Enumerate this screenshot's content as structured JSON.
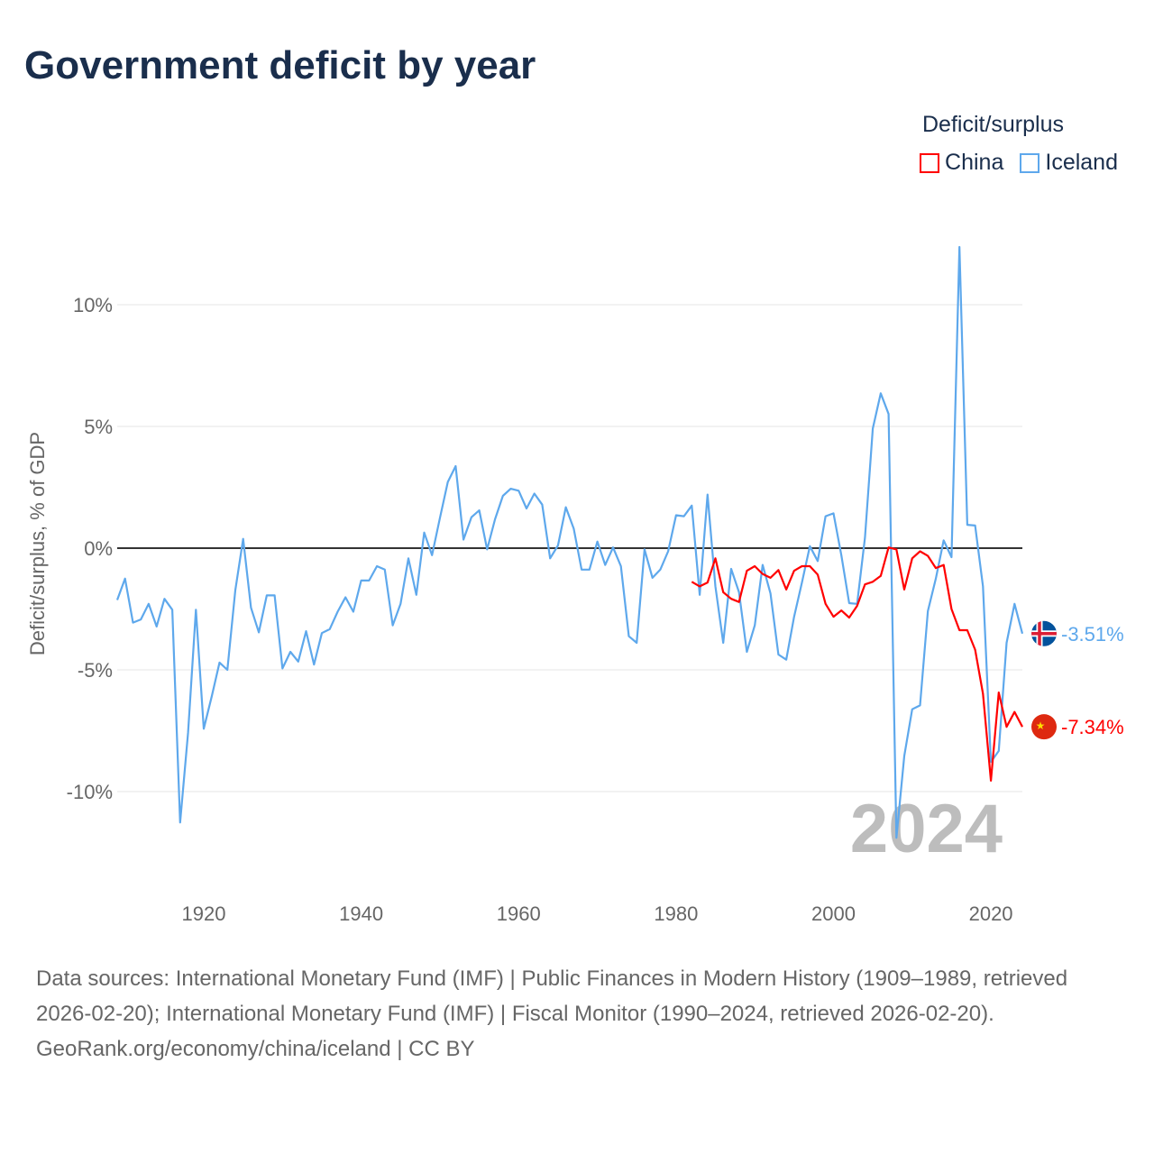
{
  "title": "Government deficit by year",
  "legend": {
    "title": "Deficit/surplus",
    "items": [
      {
        "label": "China",
        "color": "#ff0000"
      },
      {
        "label": "Iceland",
        "color": "#5ea8ec"
      }
    ]
  },
  "year_watermark": "2024",
  "footer": {
    "sources": "Data sources: International Monetary Fund (IMF) | Public Finances in Modern History (1909–1989, retrieved 2026-02-20); International Monetary Fund (IMF) | Fiscal Monitor (1990–2024, retrieved 2026-02-20).",
    "credit": "GeoRank.org/economy/china/iceland | CC BY"
  },
  "chart_data": {
    "type": "line",
    "title": "Government deficit by year",
    "xlabel": "",
    "ylabel": "Deficit/surplus, % of GDP",
    "xlim": [
      1909,
      2024
    ],
    "ylim": [
      -12.5,
      12.5
    ],
    "x_ticks": [
      "1920",
      "1940",
      "1960",
      "1980",
      "2000",
      "2020"
    ],
    "x_tick_values": [
      1920,
      1940,
      1960,
      1980,
      2000,
      2020
    ],
    "y_ticks": [
      "10%",
      "5%",
      "0%",
      "-5%",
      "-10%"
    ],
    "y_tick_values": [
      10,
      5,
      0,
      -5,
      -10
    ],
    "grid": true,
    "legend_position": "top-right",
    "series": [
      {
        "name": "Iceland",
        "color": "#5ea8ec",
        "start_year": 1909,
        "end_label": "-3.51%",
        "values": [
          -2.13,
          -1.25,
          -3.06,
          -2.93,
          -2.29,
          -3.22,
          -2.08,
          -2.53,
          -11.27,
          -7.58,
          -2.53,
          -7.42,
          -6.1,
          -4.7,
          -5.0,
          -1.73,
          0.38,
          -2.45,
          -3.46,
          -1.94,
          -1.94,
          -4.94,
          -4.26,
          -4.66,
          -3.41,
          -4.78,
          -3.49,
          -3.33,
          -2.61,
          -2.02,
          -2.61,
          -1.33,
          -1.33,
          -0.74,
          -0.88,
          -3.17,
          -2.29,
          -0.42,
          -1.92,
          0.64,
          -0.29,
          1.23,
          2.72,
          3.37,
          0.35,
          1.27,
          1.55,
          -0.05,
          1.19,
          2.15,
          2.44,
          2.36,
          1.63,
          2.24,
          1.79,
          -0.42,
          0.11,
          1.68,
          0.8,
          -0.88,
          -0.88,
          0.27,
          -0.69,
          0.03,
          -0.74,
          -3.62,
          -3.89,
          -0.05,
          -1.22,
          -0.88,
          -0.13,
          1.35,
          1.31,
          1.75,
          -1.92,
          2.2,
          -1.57,
          -3.89,
          -0.85,
          -1.81,
          -4.26,
          -3.17,
          -0.69,
          -1.86,
          -4.37,
          -4.58,
          -2.82,
          -1.41,
          0.08,
          -0.53,
          1.31,
          1.43,
          -0.29,
          -2.26,
          -2.29,
          0.43,
          4.92,
          6.36,
          5.51,
          -11.9,
          -8.54,
          -6.62,
          -6.46,
          -2.58,
          -1.25,
          0.32,
          -0.37,
          12.37,
          0.96,
          0.93,
          -1.57,
          -8.78,
          -8.33,
          -3.89,
          -2.29,
          -3.51
        ]
      },
      {
        "name": "China",
        "color": "#ff0000",
        "start_year": 1982,
        "end_label": "-7.34%",
        "values": [
          -1.38,
          -1.57,
          -1.41,
          -0.42,
          -1.81,
          -2.08,
          -2.21,
          -0.93,
          -0.74,
          -1.06,
          -1.22,
          -0.9,
          -1.7,
          -0.93,
          -0.74,
          -0.74,
          -1.09,
          -2.29,
          -2.82,
          -2.56,
          -2.85,
          -2.37,
          -1.49,
          -1.38,
          -1.14,
          0.03,
          -0.05,
          -1.7,
          -0.42,
          -0.13,
          -0.32,
          -0.82,
          -0.69,
          -2.5,
          -3.37,
          -3.37,
          -4.17,
          -5.98,
          -9.55,
          -5.93,
          -7.34,
          -6.73,
          -7.34
        ]
      }
    ]
  }
}
